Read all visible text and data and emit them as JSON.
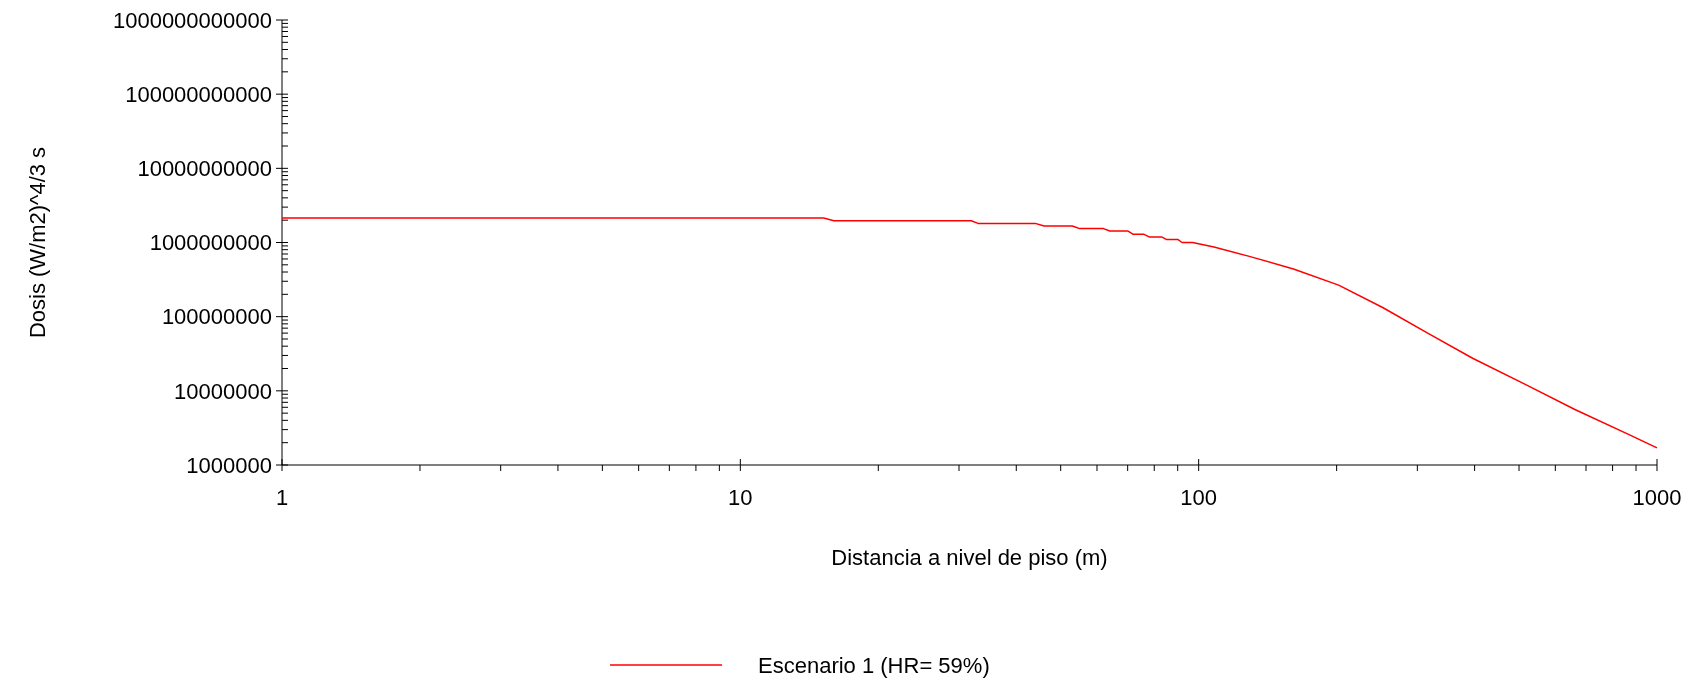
{
  "chart_data": {
    "type": "line",
    "xlabel": "Distancia a nivel de piso (m)",
    "ylabel": "Dosis (W/m2)^4/3 s",
    "log": "xy",
    "legend": "bottom",
    "grid": false,
    "line_style": "solid",
    "xlim": [
      1,
      1000
    ],
    "xticks": [
      1,
      10,
      100,
      1000
    ],
    "ylim": [
      1000000,
      1000000000000
    ],
    "yticks": [
      1000000,
      10000000,
      100000000,
      1000000000,
      10000000000,
      100000000000,
      1000000000000
    ],
    "series": [
      {
        "name": "Escenario 1 (HR= 59%)",
        "color": "#ff0000",
        "x": [
          1,
          15.2,
          16,
          31.9,
          33,
          44,
          46,
          53,
          55,
          62,
          64,
          70,
          72,
          76,
          78,
          83,
          85,
          90,
          92,
          97,
          108,
          129,
          161,
          202,
          252,
          316,
          396,
          512,
          662,
          869,
          1000
        ],
        "values": [
          2140000000,
          2140000000,
          1960000000,
          1960000000,
          1810000000,
          1810000000,
          1670000000,
          1670000000,
          1540000000,
          1540000000,
          1430000000,
          1430000000,
          1290000000,
          1290000000,
          1190000000,
          1190000000,
          1100000000,
          1100000000,
          1000000000,
          1000000000,
          870000000,
          650000000,
          440000000,
          266000000,
          133000000,
          60000000,
          27500000,
          12500000,
          5600000,
          2570000,
          1700000
        ]
      }
    ]
  }
}
